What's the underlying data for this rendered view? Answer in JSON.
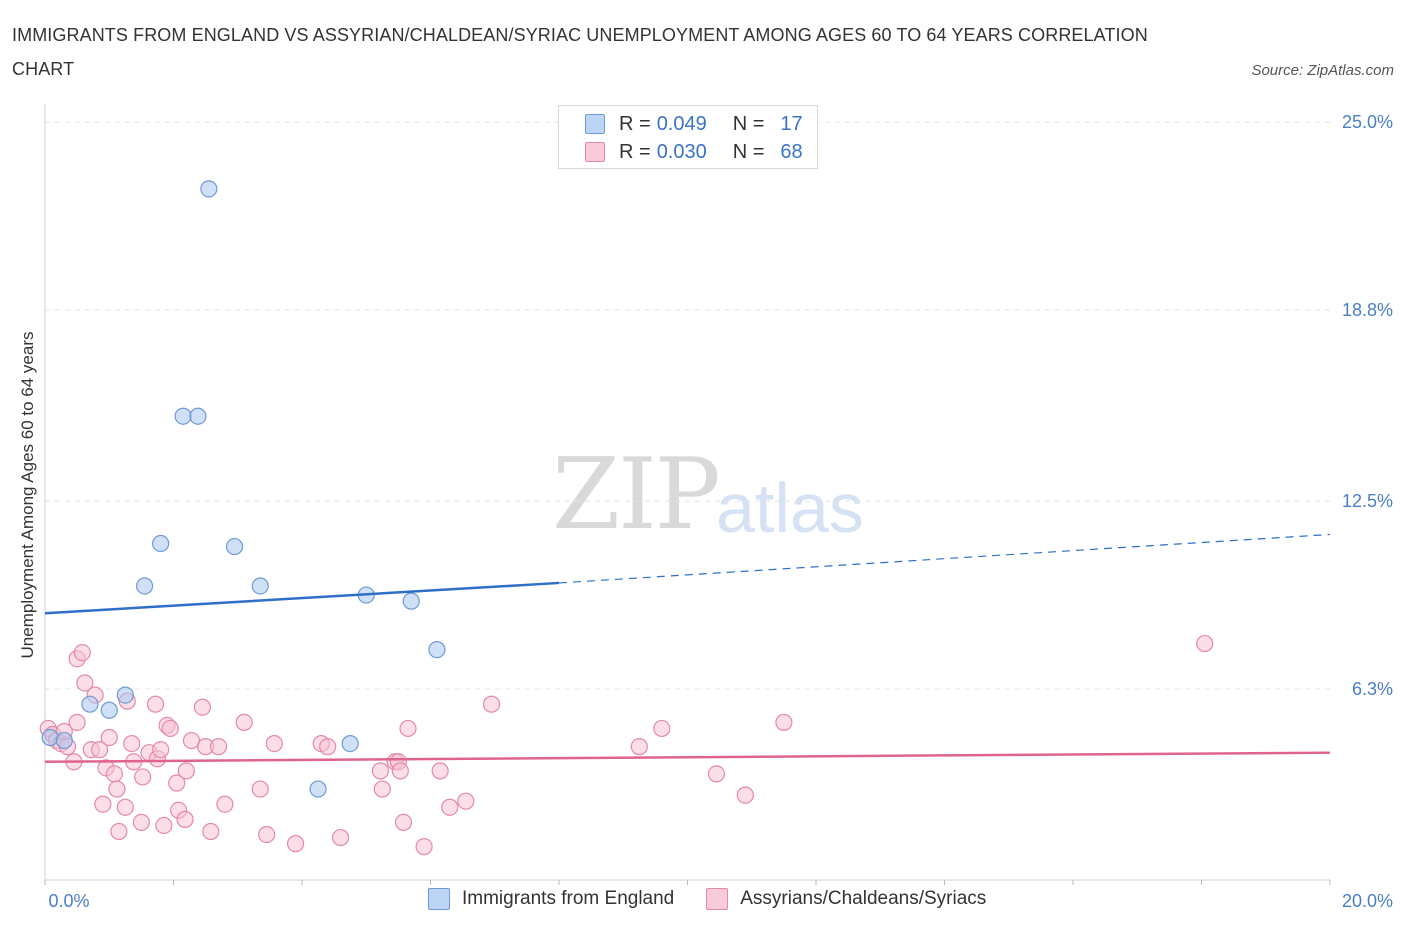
{
  "chart_data": {
    "type": "scatter",
    "title": "IMMIGRANTS FROM ENGLAND VS ASSYRIAN/CHALDEAN/SYRIAC UNEMPLOYMENT AMONG AGES 60 TO 64 YEARS CORRELATION CHART",
    "source": "Source: ZipAtlas.com",
    "ylabel": "Unemployment Among Ages 60 to 64 years",
    "xlabel": "",
    "xlim": [
      0,
      20
    ],
    "ylim": [
      0,
      25.6
    ],
    "y_ticks": [
      {
        "value": 6.3,
        "label": "6.3%"
      },
      {
        "value": 12.5,
        "label": "12.5%"
      },
      {
        "value": 18.8,
        "label": "18.8%"
      },
      {
        "value": 25.0,
        "label": "25.0%"
      }
    ],
    "x_tick_labels": {
      "min": "0.0%",
      "max": "20.0%"
    },
    "legend": [
      {
        "r_label": "R =",
        "r": "0.049",
        "n_label": "N =",
        "n": "17"
      },
      {
        "r_label": "R =",
        "r": "0.030",
        "n_label": "N =",
        "n": "68"
      }
    ],
    "series": [
      {
        "name": "Immigrants from England",
        "color": "#a9c8f0",
        "stroke": "#6e9ad6",
        "line_color": "#2f6fc7",
        "trend": {
          "x0": 0,
          "y0": 8.8,
          "x1": 8,
          "y1": 9.8,
          "x_end": 20,
          "y_end": 11.4
        },
        "points": [
          [
            0.08,
            4.7
          ],
          [
            0.3,
            4.6
          ],
          [
            0.7,
            5.8
          ],
          [
            1.0,
            5.6
          ],
          [
            1.25,
            6.1
          ],
          [
            1.55,
            9.7
          ],
          [
            1.8,
            11.1
          ],
          [
            2.15,
            15.3
          ],
          [
            2.38,
            15.3
          ],
          [
            2.55,
            22.8
          ],
          [
            2.95,
            11.0
          ],
          [
            3.35,
            9.7
          ],
          [
            4.25,
            3.0
          ],
          [
            4.75,
            4.5
          ],
          [
            5.0,
            9.4
          ],
          [
            5.7,
            9.2
          ],
          [
            6.1,
            7.6
          ]
        ]
      },
      {
        "name": "Assyrians/Chaldeans/Syriacs",
        "color": "#f7c3d3",
        "stroke": "#e48aa6",
        "line_color": "#e0638f",
        "trend": {
          "x0": 0,
          "y0": 3.9,
          "x1": 20,
          "y1": 4.2
        },
        "points": [
          [
            0.05,
            5.0
          ],
          [
            0.12,
            4.8
          ],
          [
            0.18,
            4.6
          ],
          [
            0.25,
            4.5
          ],
          [
            0.3,
            4.9
          ],
          [
            0.35,
            4.4
          ],
          [
            0.45,
            3.9
          ],
          [
            0.5,
            5.2
          ],
          [
            0.5,
            7.3
          ],
          [
            0.58,
            7.5
          ],
          [
            0.62,
            6.5
          ],
          [
            0.72,
            4.3
          ],
          [
            0.78,
            6.1
          ],
          [
            0.85,
            4.3
          ],
          [
            0.9,
            2.5
          ],
          [
            0.95,
            3.7
          ],
          [
            1.0,
            4.7
          ],
          [
            1.08,
            3.5
          ],
          [
            1.12,
            3.0
          ],
          [
            1.15,
            1.6
          ],
          [
            1.25,
            2.4
          ],
          [
            1.28,
            5.9
          ],
          [
            1.35,
            4.5
          ],
          [
            1.38,
            3.9
          ],
          [
            1.5,
            1.9
          ],
          [
            1.52,
            3.4
          ],
          [
            1.62,
            4.2
          ],
          [
            1.72,
            5.8
          ],
          [
            1.75,
            4.0
          ],
          [
            1.8,
            4.3
          ],
          [
            1.85,
            1.8
          ],
          [
            1.9,
            5.1
          ],
          [
            1.95,
            5.0
          ],
          [
            2.05,
            3.2
          ],
          [
            2.08,
            2.3
          ],
          [
            2.18,
            2.0
          ],
          [
            2.2,
            3.6
          ],
          [
            2.28,
            4.6
          ],
          [
            2.45,
            5.7
          ],
          [
            2.5,
            4.4
          ],
          [
            2.58,
            1.6
          ],
          [
            2.7,
            4.4
          ],
          [
            2.8,
            2.5
          ],
          [
            3.1,
            5.2
          ],
          [
            3.35,
            3.0
          ],
          [
            3.45,
            1.5
          ],
          [
            3.57,
            4.5
          ],
          [
            3.9,
            1.2
          ],
          [
            4.3,
            4.5
          ],
          [
            4.4,
            4.4
          ],
          [
            4.6,
            1.4
          ],
          [
            5.22,
            3.6
          ],
          [
            5.25,
            3.0
          ],
          [
            5.45,
            3.9
          ],
          [
            5.5,
            3.9
          ],
          [
            5.53,
            3.6
          ],
          [
            5.58,
            1.9
          ],
          [
            5.65,
            5.0
          ],
          [
            5.9,
            1.1
          ],
          [
            6.15,
            3.6
          ],
          [
            6.3,
            2.4
          ],
          [
            6.55,
            2.6
          ],
          [
            6.95,
            5.8
          ],
          [
            9.25,
            4.4
          ],
          [
            9.6,
            5.0
          ],
          [
            10.45,
            3.5
          ],
          [
            10.9,
            2.8
          ],
          [
            11.5,
            5.2
          ],
          [
            18.05,
            7.8
          ]
        ]
      }
    ]
  },
  "watermark": {
    "zip": "ZIP",
    "atlas": "atlas"
  }
}
